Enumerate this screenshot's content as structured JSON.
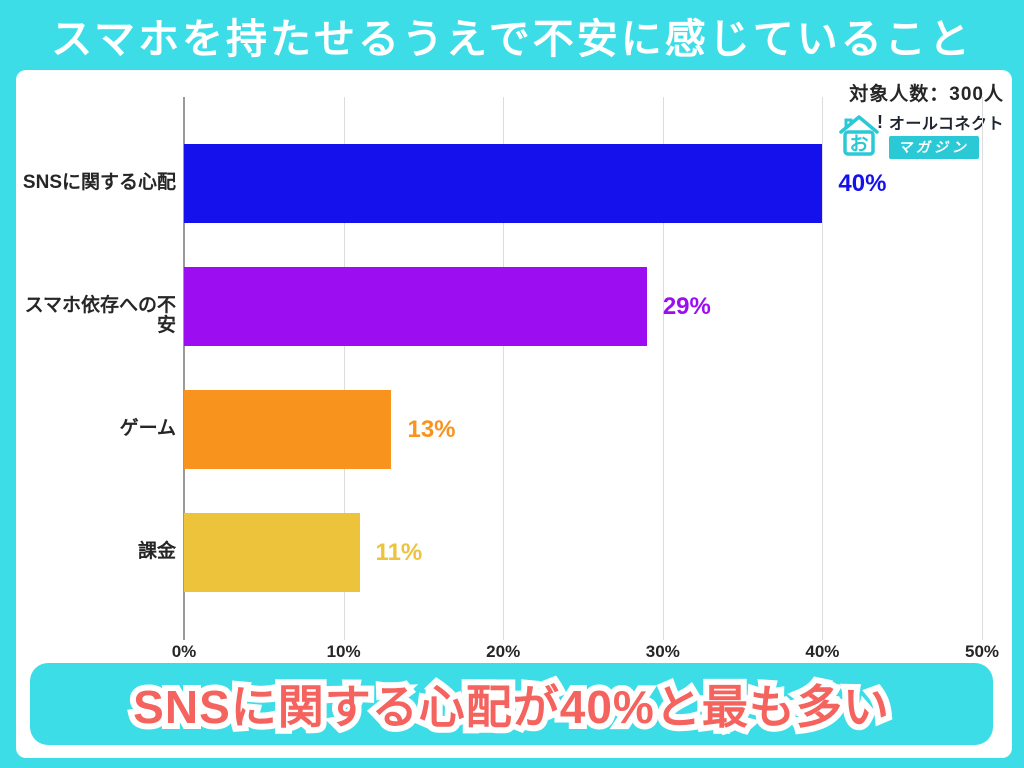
{
  "header": {
    "title": "スマホを持たせるうえで不安に感じていること"
  },
  "meta": {
    "sample_label": "対象人数：300人"
  },
  "logo": {
    "house_char": "お",
    "mark": "!",
    "brand": "オールコネクト",
    "sub_brand": "マガジン"
  },
  "chart_data": {
    "type": "bar",
    "orientation": "horizontal",
    "title": "スマホを持たせるうえで不安に感じていること",
    "categories": [
      "SNSに関する心配",
      "スマホ依存への不安",
      "ゲーム",
      "課金"
    ],
    "values": [
      40,
      29,
      13,
      11
    ],
    "value_labels": [
      "40%",
      "29%",
      "13%",
      "11%"
    ],
    "bar_colors": [
      "#1411EC",
      "#9C0DF2",
      "#F8941E",
      "#EEC33C"
    ],
    "xlim": [
      0,
      50
    ],
    "xticks": [
      0,
      10,
      20,
      30,
      40,
      50
    ],
    "xtick_labels": [
      "0%",
      "10%",
      "20%",
      "30%",
      "40%",
      "50%"
    ],
    "grid": true,
    "legend": "none",
    "xlabel": "",
    "ylabel": ""
  },
  "callout": {
    "text": "SNSに関する心配が40%と最も多い"
  },
  "colors": {
    "bg": "#3DDDE8",
    "panel": "#FFFFFF",
    "text": "#262626",
    "title-text": "#FFFFFF",
    "callout-bg": "#3DDDE8",
    "callout-text": "#F4635E",
    "axis": "#9A9A9A",
    "grid": "#DCDCDC",
    "logo-teal": "#2BC8D6",
    "logo-dark": "#1F2430"
  }
}
